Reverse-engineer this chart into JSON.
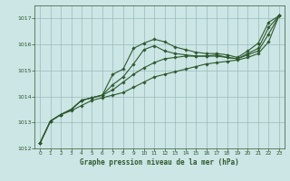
{
  "title": "Graphe pression niveau de la mer (hPa)",
  "bg_color": "#cce5e5",
  "grid_color": "#99bbbb",
  "line_color": "#2d5a2d",
  "xlim": [
    -0.5,
    23.5
  ],
  "ylim": [
    1012.0,
    1017.5
  ],
  "yticks": [
    1012,
    1013,
    1014,
    1015,
    1016,
    1017
  ],
  "xticks": [
    0,
    1,
    2,
    3,
    4,
    5,
    6,
    7,
    8,
    9,
    10,
    11,
    12,
    13,
    14,
    15,
    16,
    17,
    18,
    19,
    20,
    21,
    22,
    23
  ],
  "series": [
    [
      1012.2,
      1013.05,
      1013.3,
      1013.5,
      1013.85,
      1013.95,
      1014.05,
      1014.85,
      1015.05,
      1015.85,
      1016.05,
      1016.2,
      1016.1,
      1015.9,
      1015.8,
      1015.7,
      1015.65,
      1015.65,
      1015.6,
      1015.5,
      1015.75,
      1016.05,
      1016.85,
      1017.1
    ],
    [
      1012.2,
      1013.05,
      1013.3,
      1013.5,
      1013.85,
      1013.95,
      1014.05,
      1014.45,
      1014.75,
      1015.25,
      1015.8,
      1015.95,
      1015.75,
      1015.65,
      1015.6,
      1015.55,
      1015.55,
      1015.6,
      1015.5,
      1015.45,
      1015.65,
      1015.85,
      1016.65,
      1017.1
    ],
    [
      1012.2,
      1013.05,
      1013.3,
      1013.5,
      1013.85,
      1013.95,
      1014.05,
      1014.25,
      1014.55,
      1014.85,
      1015.1,
      1015.3,
      1015.45,
      1015.5,
      1015.55,
      1015.55,
      1015.55,
      1015.55,
      1015.5,
      1015.45,
      1015.6,
      1015.75,
      1016.4,
      1017.1
    ],
    [
      1012.2,
      1013.05,
      1013.3,
      1013.45,
      1013.65,
      1013.85,
      1013.95,
      1014.05,
      1014.15,
      1014.35,
      1014.55,
      1014.75,
      1014.85,
      1014.95,
      1015.05,
      1015.15,
      1015.25,
      1015.3,
      1015.35,
      1015.4,
      1015.5,
      1015.65,
      1016.1,
      1017.1
    ]
  ]
}
